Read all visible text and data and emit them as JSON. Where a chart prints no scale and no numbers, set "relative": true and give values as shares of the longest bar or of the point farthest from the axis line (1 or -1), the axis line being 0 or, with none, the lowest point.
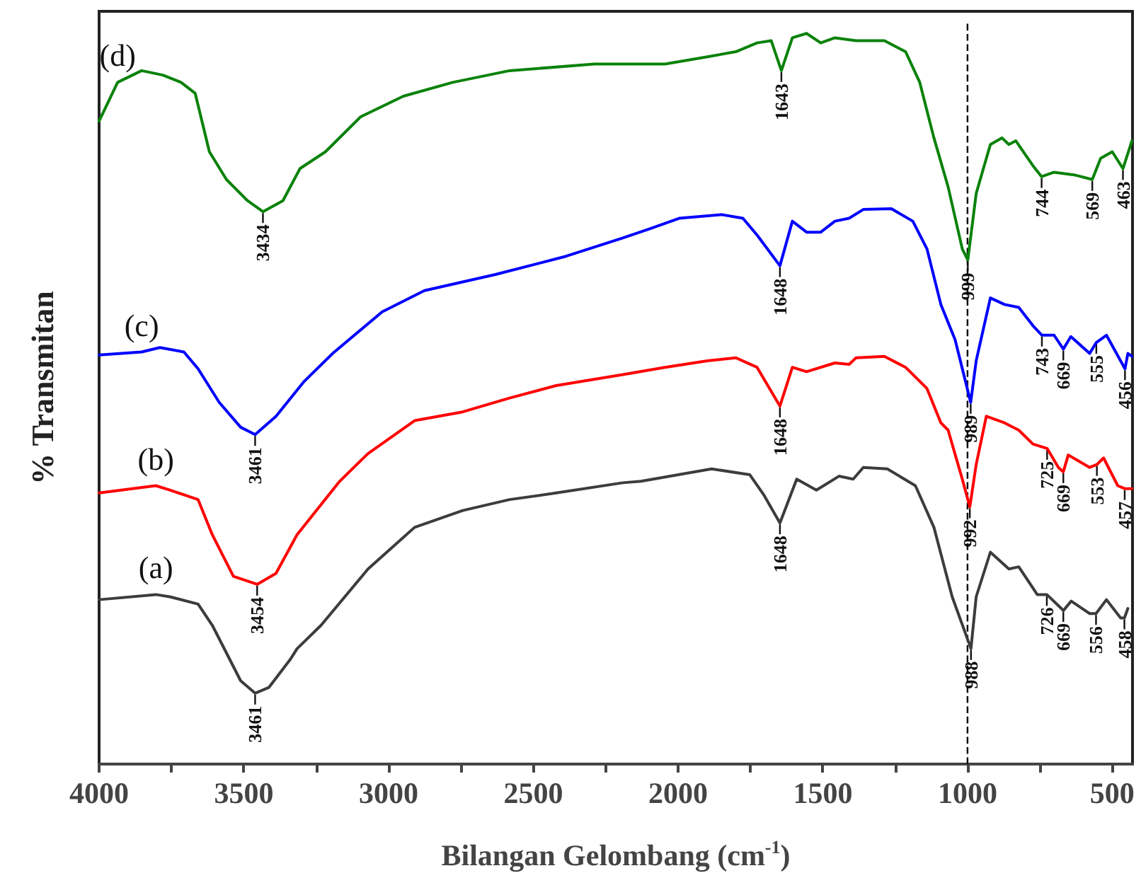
{
  "chart_data": {
    "type": "line",
    "relative": true,
    "xlabel": "Bilangan Gelombang (cm$^{-1}$)",
    "ylabel": "% Transmitan",
    "xlim": [
      4000,
      430
    ],
    "xticks": [
      4000,
      {
        "value": 3750,
        "label": null
      },
      3500,
      {
        "value": 3250,
        "label": null
      },
      3000,
      {
        "value": 2750,
        "label": null
      },
      2500,
      {
        "value": 2250,
        "label": null
      },
      2000,
      {
        "value": 1750,
        "label": null
      },
      1500,
      {
        "value": 1250,
        "label": null
      },
      1000,
      {
        "value": 750,
        "label": null
      },
      500
    ],
    "marker": "none",
    "line_style": "solid",
    "ref_lines": [
      {
        "axis": "x",
        "value": 1000,
        "color": "#000000",
        "line_style": "dashed"
      }
    ],
    "series": [
      {
        "name": "(d)",
        "color": "#0a820a",
        "x": [
          4000,
          3936,
          3853,
          3780,
          3717,
          3668,
          3619,
          3560,
          3487,
          3434,
          3365,
          3306,
          3218,
          3096,
          2949,
          2778,
          2582,
          2289,
          2045,
          1898,
          1800,
          1727,
          1678,
          1643,
          1605,
          1556,
          1507,
          1458,
          1385,
          1287,
          1214,
          1165,
          1116,
          1067,
          1018,
          999,
          970,
          921,
          881,
          857,
          833,
          774,
          744,
          701,
          627,
          569,
          540,
          500,
          463,
          432
        ],
        "values": [
          0.88,
          0.933,
          0.949,
          0.943,
          0.933,
          0.918,
          0.838,
          0.8,
          0.771,
          0.756,
          0.771,
          0.815,
          0.838,
          0.886,
          0.914,
          0.933,
          0.949,
          0.958,
          0.958,
          0.968,
          0.975,
          0.987,
          0.99,
          0.949,
          0.994,
          1.0,
          0.987,
          0.994,
          0.99,
          0.99,
          0.975,
          0.933,
          0.857,
          0.79,
          0.705,
          0.69,
          0.781,
          0.848,
          0.857,
          0.848,
          0.853,
          0.819,
          0.804,
          0.81,
          0.806,
          0.8,
          0.829,
          0.838,
          0.815,
          0.853
        ]
      },
      {
        "name": "(c)",
        "color": "#0000ff",
        "x": [
          4000,
          3853,
          3790,
          3707,
          3658,
          3585,
          3511,
          3461,
          3389,
          3291,
          3193,
          3022,
          2876,
          2631,
          2387,
          2191,
          2094,
          1996,
          1849,
          1776,
          1727,
          1648,
          1605,
          1556,
          1507,
          1458,
          1409,
          1360,
          1263,
          1189,
          1140,
          1092,
          1043,
          989,
          970,
          921,
          872,
          823,
          774,
          743,
          701,
          669,
          643,
          578,
          555,
          520,
          456,
          446,
          432
        ],
        "values": [
          0.56,
          0.564,
          0.57,
          0.564,
          0.541,
          0.495,
          0.461,
          0.451,
          0.476,
          0.524,
          0.562,
          0.619,
          0.648,
          0.67,
          0.695,
          0.72,
          0.733,
          0.747,
          0.752,
          0.747,
          0.724,
          0.682,
          0.743,
          0.728,
          0.728,
          0.743,
          0.747,
          0.759,
          0.76,
          0.743,
          0.705,
          0.629,
          0.581,
          0.495,
          0.552,
          0.638,
          0.629,
          0.625,
          0.6,
          0.587,
          0.587,
          0.568,
          0.585,
          0.562,
          0.577,
          0.587,
          0.541,
          0.562,
          0.558
        ]
      },
      {
        "name": "(b)",
        "color": "#ff0000",
        "x": [
          4000,
          3804,
          3756,
          3658,
          3609,
          3536,
          3454,
          3389,
          3316,
          3169,
          3071,
          2910,
          2744,
          2582,
          2421,
          2191,
          2045,
          1898,
          1800,
          1727,
          1648,
          1605,
          1556,
          1458,
          1409,
          1385,
          1287,
          1214,
          1140,
          1092,
          1067,
          1018,
          992,
          970,
          935,
          872,
          823,
          774,
          725,
          686,
          669,
          652,
          578,
          553,
          530,
          481,
          457,
          432
        ],
        "values": [
          0.371,
          0.381,
          0.375,
          0.362,
          0.314,
          0.257,
          0.246,
          0.261,
          0.314,
          0.387,
          0.425,
          0.47,
          0.482,
          0.501,
          0.518,
          0.533,
          0.543,
          0.552,
          0.556,
          0.543,
          0.49,
          0.543,
          0.537,
          0.549,
          0.547,
          0.556,
          0.558,
          0.543,
          0.514,
          0.467,
          0.457,
          0.39,
          0.352,
          0.41,
          0.476,
          0.467,
          0.457,
          0.438,
          0.432,
          0.406,
          0.4,
          0.423,
          0.406,
          0.41,
          0.419,
          0.381,
          0.377,
          0.377
        ]
      },
      {
        "name": "(a)",
        "color": "#3c3c3c",
        "x": [
          4000,
          3804,
          3756,
          3658,
          3609,
          3560,
          3511,
          3461,
          3413,
          3340,
          3316,
          3233,
          3071,
          2910,
          2744,
          2582,
          2421,
          2191,
          2128,
          1884,
          1752,
          1703,
          1648,
          1590,
          1522,
          1444,
          1395,
          1360,
          1277,
          1180,
          1116,
          1053,
          988,
          970,
          921,
          857,
          823,
          759,
          726,
          676,
          669,
          642,
          578,
          556,
          520,
          471,
          458,
          446
        ],
        "values": [
          0.225,
          0.232,
          0.229,
          0.219,
          0.19,
          0.152,
          0.114,
          0.097,
          0.105,
          0.143,
          0.158,
          0.19,
          0.267,
          0.324,
          0.347,
          0.362,
          0.371,
          0.385,
          0.387,
          0.404,
          0.396,
          0.368,
          0.33,
          0.39,
          0.375,
          0.394,
          0.39,
          0.406,
          0.404,
          0.381,
          0.324,
          0.229,
          0.158,
          0.229,
          0.29,
          0.267,
          0.27,
          0.232,
          0.232,
          0.213,
          0.21,
          0.223,
          0.206,
          0.206,
          0.225,
          0.2,
          0.2,
          0.213
        ]
      }
    ],
    "annotations": [
      {
        "text": "3434",
        "x": 3434,
        "y": 0.756
      },
      {
        "text": "1643",
        "x": 1643,
        "y": 0.949
      },
      {
        "text": "999",
        "x": 999,
        "y": 0.69
      },
      {
        "text": "744",
        "x": 744,
        "y": 0.804
      },
      {
        "text": "569",
        "x": 569,
        "y": 0.8
      },
      {
        "text": "463",
        "x": 463,
        "y": 0.815
      },
      {
        "text": "3461",
        "x": 3461,
        "y": 0.451
      },
      {
        "text": "1648",
        "x": 1648,
        "y": 0.682
      },
      {
        "text": "989",
        "x": 989,
        "y": 0.495
      },
      {
        "text": "743",
        "x": 743,
        "y": 0.587
      },
      {
        "text": "669",
        "x": 669,
        "y": 0.568
      },
      {
        "text": "555",
        "x": 555,
        "y": 0.577
      },
      {
        "text": "456",
        "x": 456,
        "y": 0.541
      },
      {
        "text": "3454",
        "x": 3454,
        "y": 0.246
      },
      {
        "text": "1648",
        "x": 1648,
        "y": 0.49
      },
      {
        "text": "992",
        "x": 992,
        "y": 0.352
      },
      {
        "text": "725",
        "x": 725,
        "y": 0.432
      },
      {
        "text": "669",
        "x": 669,
        "y": 0.4
      },
      {
        "text": "553",
        "x": 553,
        "y": 0.41
      },
      {
        "text": "457",
        "x": 457,
        "y": 0.377
      },
      {
        "text": "3461",
        "x": 3461,
        "y": 0.097
      },
      {
        "text": "1648",
        "x": 1648,
        "y": 0.33
      },
      {
        "text": "988",
        "x": 988,
        "y": 0.158
      },
      {
        "text": "726",
        "x": 726,
        "y": 0.232
      },
      {
        "text": "669",
        "x": 669,
        "y": 0.21
      },
      {
        "text": "556",
        "x": 556,
        "y": 0.206
      },
      {
        "text": "458",
        "x": 458,
        "y": 0.2
      }
    ]
  }
}
